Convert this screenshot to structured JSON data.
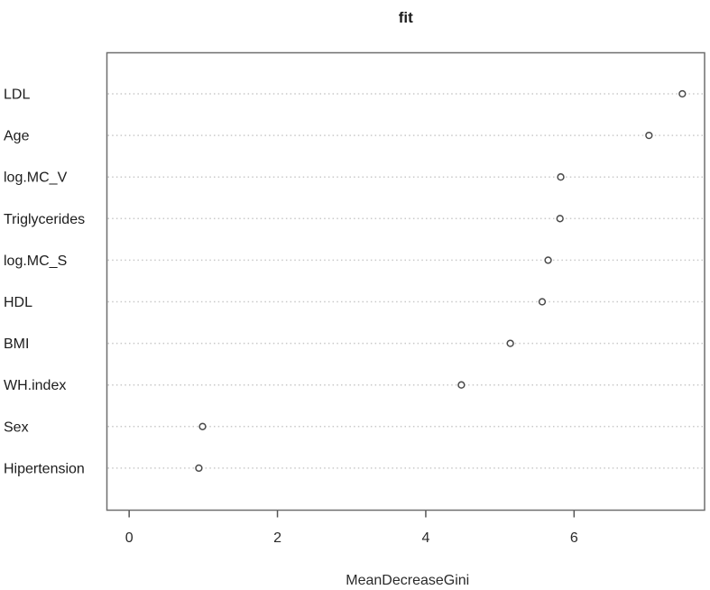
{
  "figure": {
    "background": "#ffffff"
  },
  "chart_data": {
    "type": "scatter",
    "variant": "R-dotchart-variable-importance",
    "title": "fit",
    "xlabel": "MeanDecreaseGini",
    "ylabel": "",
    "categories": [
      "LDL",
      "Age",
      "log.MC_V",
      "Triglycerides",
      "log.MC_S",
      "HDL",
      "BMI",
      "WH.index",
      "Sex",
      "Hipertension"
    ],
    "values": [
      7.46,
      7.01,
      5.82,
      5.81,
      5.65,
      5.57,
      5.14,
      4.48,
      0.99,
      0.94
    ],
    "xticks": [
      0,
      2,
      4,
      6
    ],
    "xlim": [
      -0.3,
      7.76
    ],
    "grid": "dotted-horizontal",
    "legend": "none",
    "point_marker": "open-circle",
    "colors": {
      "point_stroke": "#4a4a4a",
      "grid_line": "#c9c9c9",
      "box_border": "#6e6e6e",
      "tick_color": "#555555",
      "text": "#1c1c1c"
    }
  }
}
